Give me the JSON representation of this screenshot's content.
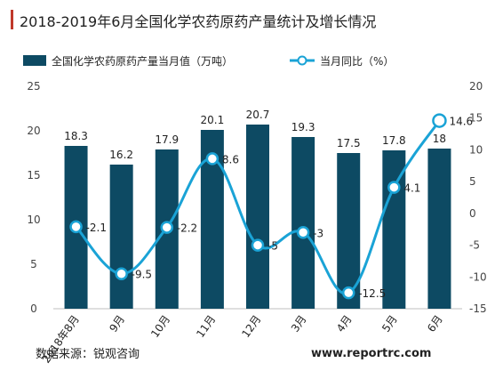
{
  "chart_data": {
    "type": "bar+line",
    "title": "2018-2019年6月全国化学农药原药产量统计及增长情况",
    "categories": [
      "2018年8月",
      "9月",
      "10月",
      "11月",
      "12月",
      "3月",
      "4月",
      "5月",
      "6月"
    ],
    "series": [
      {
        "name": "全国化学农药原药产量当月值（万吨）",
        "type": "bar",
        "axis": "left",
        "color": "#0d4a63",
        "values": [
          18.3,
          16.2,
          17.9,
          20.1,
          20.7,
          19.3,
          17.5,
          17.8,
          18
        ]
      },
      {
        "name": "当月同比（%）",
        "type": "line",
        "axis": "right",
        "color": "#1aa3d6",
        "values": [
          -2.1,
          -9.5,
          -2.2,
          8.6,
          -5,
          -3,
          -12.5,
          4.1,
          14.6
        ]
      }
    ],
    "y_left": {
      "range": [
        0,
        25
      ],
      "ticks": [
        0,
        5,
        10,
        15,
        20,
        25
      ]
    },
    "y_right": {
      "range": [
        -15,
        20
      ],
      "ticks": [
        -15,
        -10,
        -5,
        0,
        5,
        10,
        15,
        20
      ]
    },
    "legend": {
      "position": "top-left"
    },
    "grid": false
  },
  "source": "数据来源：锐观咨询",
  "watermark": "www.reportrc.com"
}
